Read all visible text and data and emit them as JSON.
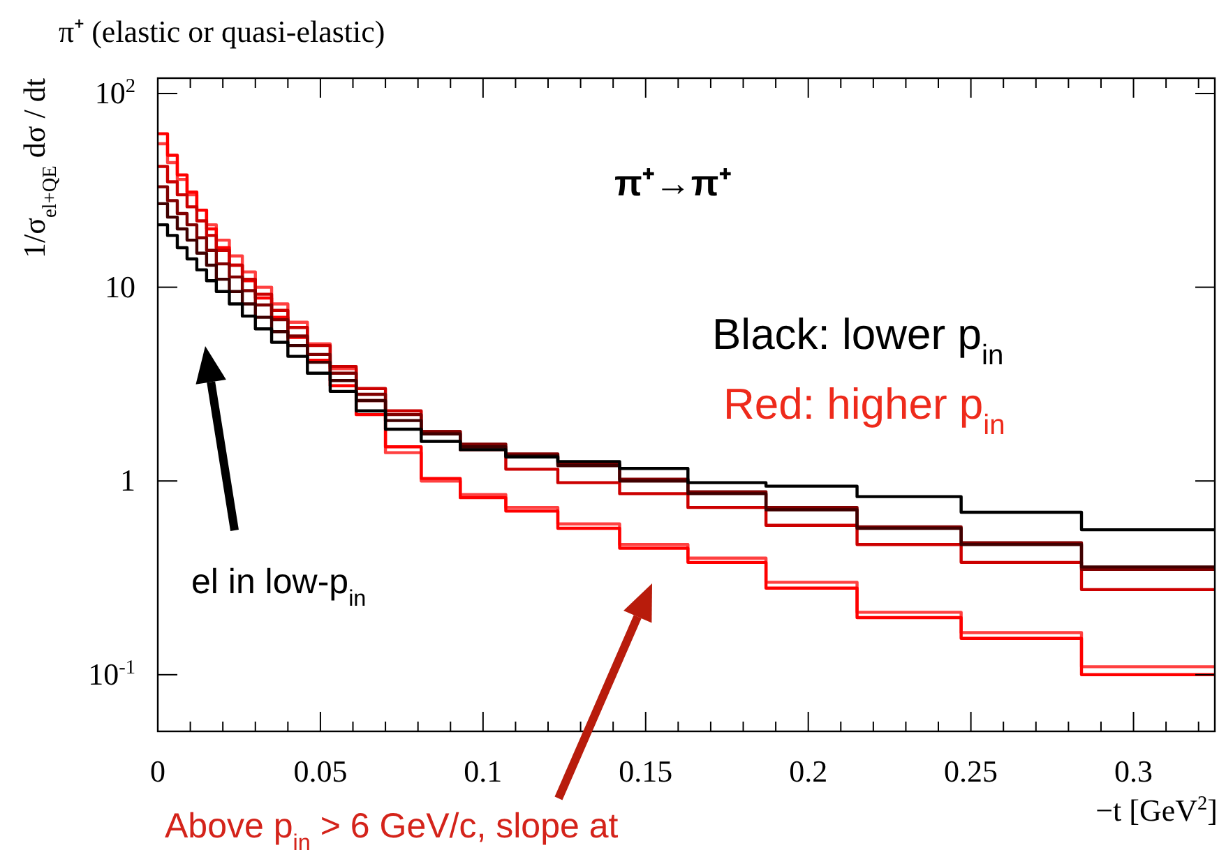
{
  "chart_data": {
    "type": "histogram",
    "title": "π⁺ (elastic or quasi-elastic)",
    "xlabel": "−t [GeV$^{2}$]",
    "ylabel": "1/σ$_{el+QE}$ dσ / dt",
    "annotations": [
      "π⁺→π⁺",
      "Black: lower p$_{in}$",
      "Red: higher p$_{in}$",
      "el in low-p$_{in}$",
      "Above p$_{in}$ > 6 GeV/c, slope at"
    ],
    "log": "y",
    "grid": false,
    "xlim": [
      0,
      0.325
    ],
    "ylim": [
      0.051,
      120
    ],
    "xticks": [
      0,
      {
        "value": 0.01,
        "label": null
      },
      {
        "value": 0.02,
        "label": null
      },
      {
        "value": 0.03,
        "label": null
      },
      {
        "value": 0.04,
        "label": null
      },
      0.05,
      {
        "value": 0.06,
        "label": null
      },
      {
        "value": 0.07,
        "label": null
      },
      {
        "value": 0.08,
        "label": null
      },
      {
        "value": 0.09,
        "label": null
      },
      0.1,
      {
        "value": 0.11,
        "label": null
      },
      {
        "value": 0.12,
        "label": null
      },
      {
        "value": 0.13,
        "label": null
      },
      {
        "value": 0.14,
        "label": null
      },
      0.15,
      {
        "value": 0.16,
        "label": null
      },
      {
        "value": 0.17,
        "label": null
      },
      {
        "value": 0.18,
        "label": null
      },
      {
        "value": 0.19,
        "label": null
      },
      0.2,
      {
        "value": 0.21,
        "label": null
      },
      {
        "value": 0.22,
        "label": null
      },
      {
        "value": 0.23,
        "label": null
      },
      {
        "value": 0.24,
        "label": null
      },
      0.25,
      {
        "value": 0.26,
        "label": null
      },
      {
        "value": 0.27,
        "label": null
      },
      {
        "value": 0.28,
        "label": null
      },
      {
        "value": 0.29,
        "label": null
      },
      0.3,
      {
        "value": 0.31,
        "label": null
      },
      {
        "value": 0.32,
        "label": null
      }
    ],
    "yticks": [
      {
        "value": 0.1,
        "label": "10$^{-1}$"
      },
      1,
      10,
      {
        "value": 100,
        "label": "10$^{2}$"
      }
    ],
    "bins": [
      0,
      0.003,
      0.006,
      0.009,
      0.012,
      0.015,
      0.018,
      0.022,
      0.026,
      0.03,
      0.035,
      0.04,
      0.046,
      0.053,
      0.061,
      0.07,
      0.081,
      0.093,
      0.107,
      0.123,
      0.142,
      0.163,
      0.187,
      0.215,
      0.247,
      0.284,
      0.325
    ],
    "series": [
      {
        "color": "#ff4040",
        "values": [
          55,
          44,
          36,
          30,
          25,
          21,
          17.5,
          14.5,
          12,
          10,
          8.2,
          6.6,
          5.1,
          3.8,
          2.6,
          1.4,
          1.0,
          0.85,
          0.73,
          0.6,
          0.47,
          0.4,
          0.3,
          0.21,
          0.165,
          0.11
        ]
      },
      {
        "color": "#ff0000",
        "values": [
          62,
          48,
          38,
          31,
          25,
          20,
          16,
          13,
          10.8,
          8.8,
          7,
          5.5,
          4.2,
          3.1,
          2.2,
          1.5,
          1.03,
          0.82,
          0.7,
          0.57,
          0.45,
          0.38,
          0.28,
          0.197,
          0.154,
          0.1
        ]
      },
      {
        "color": "#cc0000",
        "values": [
          42,
          35,
          30,
          26,
          22,
          18.5,
          15.5,
          13,
          11,
          9.2,
          7.6,
          6.2,
          5,
          3.9,
          3.0,
          2.3,
          1.8,
          1.45,
          1.15,
          0.98,
          0.86,
          0.73,
          0.59,
          0.47,
          0.38,
          0.275
        ]
      },
      {
        "color": "#800000",
        "values": [
          33,
          28,
          24,
          21,
          18,
          15.5,
          13.2,
          11.3,
          9.6,
          8.1,
          6.8,
          5.6,
          4.5,
          3.6,
          2.8,
          2.2,
          1.8,
          1.55,
          1.38,
          1.22,
          1.02,
          0.88,
          0.73,
          0.58,
          0.48,
          0.35
        ]
      },
      {
        "color": "#400000",
        "values": [
          27,
          23,
          20,
          17.5,
          15,
          13,
          11,
          9.5,
          8.2,
          7,
          5.9,
          5,
          4.1,
          3.3,
          2.6,
          2.05,
          1.75,
          1.5,
          1.35,
          1.2,
          1.0,
          0.86,
          0.71,
          0.57,
          0.47,
          0.36
        ]
      },
      {
        "color": "#000000",
        "values": [
          21,
          18.5,
          16,
          14,
          12.3,
          10.8,
          9.5,
          8.2,
          7.1,
          6.1,
          5.2,
          4.4,
          3.6,
          2.9,
          2.3,
          1.85,
          1.6,
          1.45,
          1.33,
          1.26,
          1.16,
          0.98,
          0.94,
          0.83,
          0.69,
          0.56
        ]
      }
    ]
  }
}
